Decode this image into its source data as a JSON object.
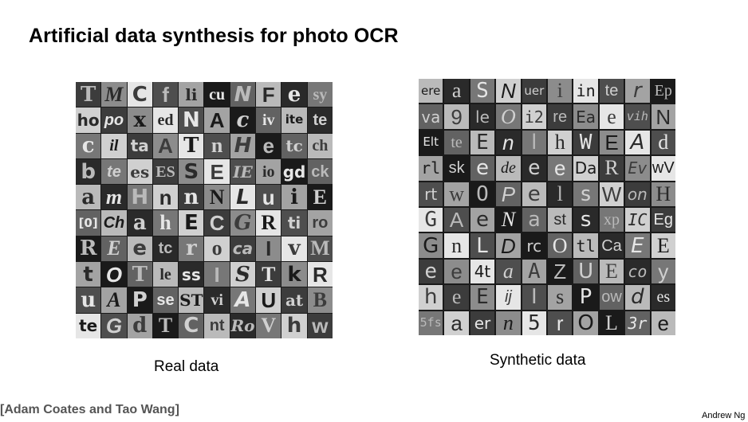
{
  "slide": {
    "title": "Artificial data synthesis for photo OCR",
    "real_caption": "Real data",
    "synthetic_caption": "Synthetic data",
    "citation": "[Adam Coates and Tao Wang]",
    "author": "Andrew Ng"
  },
  "real_tiles": [
    "T",
    "M",
    "C",
    "f",
    "li",
    "cu",
    "N",
    "F",
    "e",
    "sy",
    "ho",
    "po",
    "x",
    "ed",
    "N",
    "A",
    "c",
    "iv",
    "ite",
    "te",
    "c",
    "il",
    "ta",
    "A",
    "T",
    "n",
    "H",
    "e",
    "tc",
    "ch",
    "b",
    "te",
    "es",
    "ES",
    "S",
    "E",
    "IE",
    "io",
    "gd",
    "ck",
    "a",
    "m",
    "H",
    "n",
    "n",
    "N",
    "L",
    "u",
    "i",
    "E",
    "[0]",
    "Ch",
    "a",
    "h",
    "E",
    "C",
    "G",
    "R",
    "ti",
    "ro",
    "R",
    "E",
    "e",
    "tc",
    "r",
    "o",
    "ca",
    "I",
    "v",
    "M",
    "t",
    "O",
    "T",
    "le",
    "ss",
    "I",
    "S",
    "T",
    "k",
    "R",
    "u",
    "A",
    "P",
    "se",
    "ST",
    "vi",
    "A",
    "U",
    "at",
    "B",
    "te",
    "G",
    "d",
    "T",
    "C",
    "nt",
    "Ro",
    "V",
    "h",
    "w"
  ],
  "synthetic_tiles": [
    "ere",
    "a",
    "S",
    "N",
    "uer",
    "i",
    "in",
    "te",
    "r",
    "Ep",
    "va",
    "9",
    "le",
    "O",
    "i2",
    "re",
    "Ea",
    "e",
    "vih",
    "N",
    "Elt",
    "te",
    "E",
    "n",
    "l",
    "h",
    "W",
    "E",
    "A",
    "d",
    "rl",
    "sk",
    "e",
    "de",
    "e",
    "e",
    "Da",
    "R",
    "Ev",
    "wV",
    "rt",
    "w",
    "O",
    "P",
    "e",
    "l",
    "s",
    "W",
    "on",
    "H",
    "G",
    "A",
    "e",
    "N",
    "a",
    "st",
    "s",
    "xp",
    "IC",
    "Eg",
    "G",
    "n",
    "L",
    "D",
    "rc",
    "O",
    "tl",
    "Ca",
    "E",
    "E",
    "e",
    "e",
    "4t",
    "a",
    "A",
    "Z",
    "U",
    "E",
    "co",
    "y",
    "h",
    "e",
    "E",
    "ij",
    "I",
    "s",
    "P",
    "ow",
    "d",
    "es",
    "5fs",
    "a",
    "er",
    "n",
    "5",
    "r",
    "O",
    "L",
    "3r",
    "e"
  ],
  "tile_colors": {
    "dark": "#1e1e1e",
    "mid": "#6e6e6e",
    "light": "#d2d2d2",
    "white": "#f2f2f2"
  }
}
